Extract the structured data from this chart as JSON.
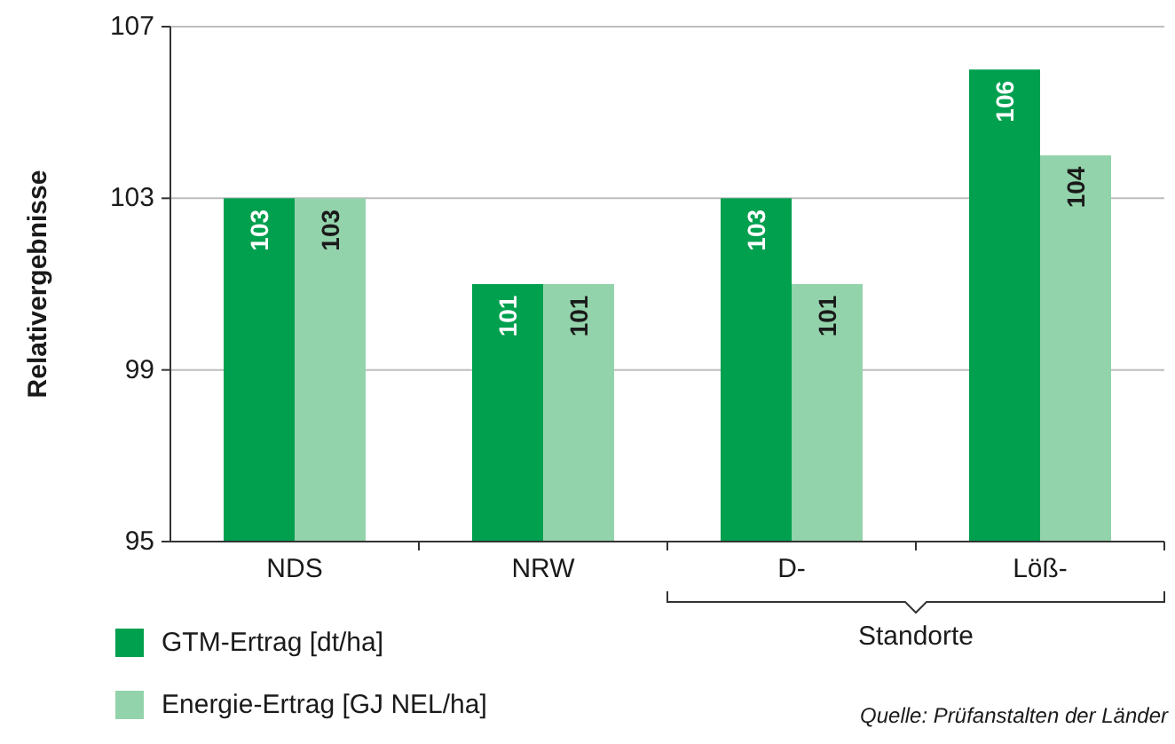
{
  "chart_data": {
    "type": "bar",
    "ylabel": "Relativergebnisse",
    "categories": [
      "NDS",
      "NRW",
      "D-",
      "Löß-"
    ],
    "series": [
      {
        "name": "GTM-Ertrag [dt/ha]",
        "color": "#00a04f",
        "values": [
          103,
          101,
          103,
          106
        ]
      },
      {
        "name": "Energie-Ertrag [GJ NEL/ha]",
        "color": "#93d3ab",
        "values": [
          103,
          101,
          101,
          104
        ]
      }
    ],
    "ylim": [
      95,
      107
    ],
    "yticks": [
      95,
      99,
      103,
      107
    ],
    "grid": "y",
    "legend": "bottom left",
    "data_labels": true,
    "annotations": [
      "Standorte",
      "Quelle: Prüfanstalten der Länder"
    ]
  }
}
